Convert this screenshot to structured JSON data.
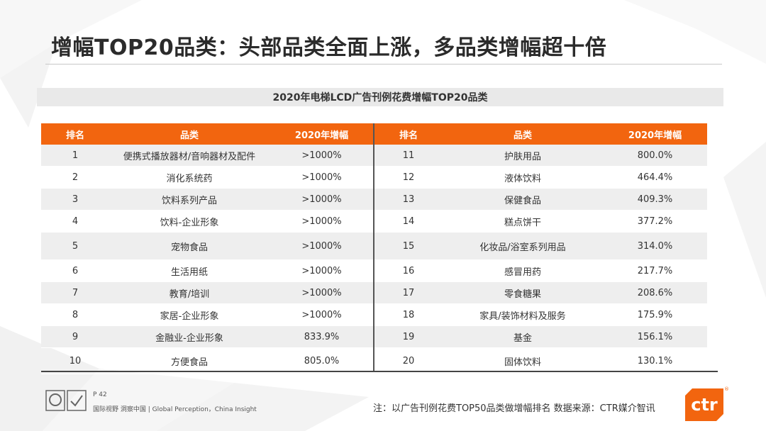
{
  "header": {
    "title": "增幅TOP20品类：头部品类全面上涨，多品类增幅超十倍",
    "subtitle": "2020年电梯LCD广告刊例花费增幅TOP20品类"
  },
  "table": {
    "columns": [
      "排名",
      "品类",
      "2020年增幅"
    ],
    "left_rows": [
      {
        "rank": "1",
        "category": "便携式播放器材/音响器材及配件",
        "value": ">1000%"
      },
      {
        "rank": "2",
        "category": "消化系统药",
        "value": ">1000%"
      },
      {
        "rank": "3",
        "category": "饮料系列产品",
        "value": ">1000%"
      },
      {
        "rank": "4",
        "category": "饮料-企业形象",
        "value": ">1000%"
      },
      {
        "rank": "5",
        "category": "宠物食品",
        "value": ">1000%"
      },
      {
        "rank": "6",
        "category": "生活用纸",
        "value": ">1000%"
      },
      {
        "rank": "7",
        "category": "教育/培训",
        "value": ">1000%"
      },
      {
        "rank": "8",
        "category": "家居-企业形象",
        "value": ">1000%"
      },
      {
        "rank": "9",
        "category": "金融业-企业形象",
        "value": "833.9%"
      },
      {
        "rank": "10",
        "category": "方便食品",
        "value": "805.0%"
      }
    ],
    "right_rows": [
      {
        "rank": "11",
        "category": "护肤用品",
        "value": "800.0%"
      },
      {
        "rank": "12",
        "category": "液体饮料",
        "value": "464.4%"
      },
      {
        "rank": "13",
        "category": "保健食品",
        "value": "409.3%"
      },
      {
        "rank": "14",
        "category": "糕点饼干",
        "value": "377.2%"
      },
      {
        "rank": "15",
        "category": "化妆品/浴室系列用品",
        "value": "314.0%"
      },
      {
        "rank": "16",
        "category": "感冒用药",
        "value": "217.7%"
      },
      {
        "rank": "17",
        "category": "零食糖果",
        "value": "208.6%"
      },
      {
        "rank": "18",
        "category": "家具/装饰材料及服务",
        "value": "175.9%"
      },
      {
        "rank": "19",
        "category": "基金",
        "value": "156.1%"
      },
      {
        "rank": "20",
        "category": "固体饮料",
        "value": "130.1%"
      }
    ]
  },
  "footer": {
    "page": "P 42",
    "tagline": "国际视野 洞察中国 | Global Perception，China Insight",
    "note": "注：以广告刊例花费TOP50品类做增幅排名   数据来源：CTR媒介智讯",
    "brand": "ctr",
    "reg": "®"
  },
  "colors": {
    "accent": "#f2650f",
    "row_alt": "#eeeeee",
    "subtitle_bg": "#e9e9e9"
  }
}
